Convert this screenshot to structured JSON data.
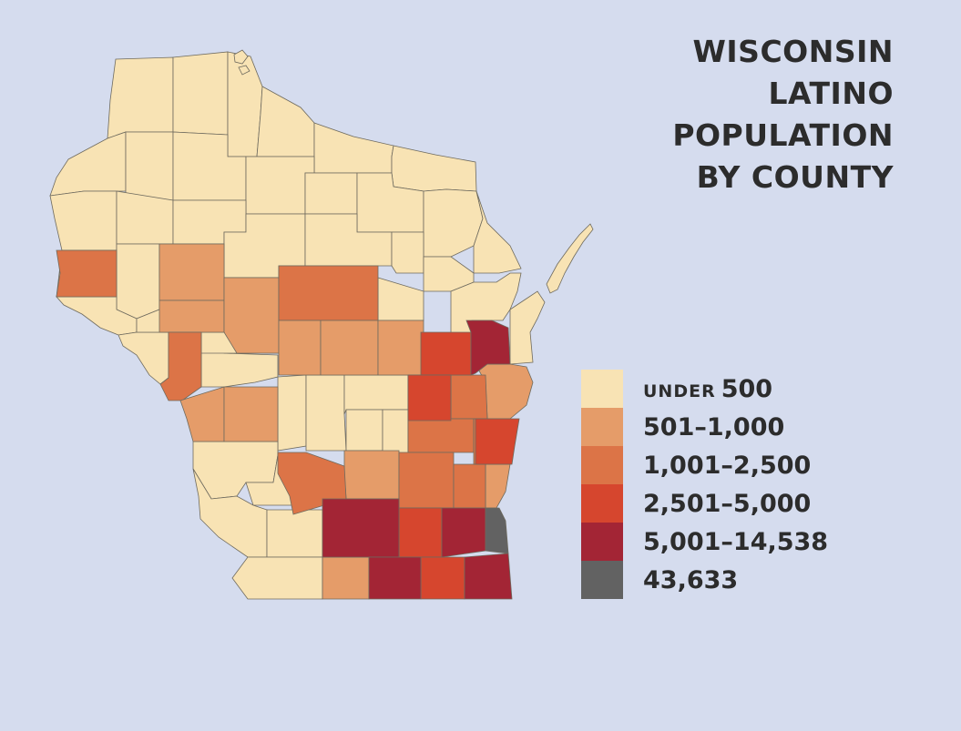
{
  "title": {
    "lines": [
      "WISCONSIN",
      "LATINO",
      "POPULATION",
      "BY COUNTY"
    ]
  },
  "legend": {
    "classes": [
      {
        "prefix": "UNDER",
        "label": "500",
        "color": "#f8e3b4"
      },
      {
        "prefix": "",
        "label": "501–1,000",
        "color": "#e59c69"
      },
      {
        "prefix": "",
        "label": "1,001–2,500",
        "color": "#dc7447"
      },
      {
        "prefix": "",
        "label": "2,501–5,000",
        "color": "#d6462e"
      },
      {
        "prefix": "",
        "label": "5,001–14,538",
        "color": "#a32535"
      },
      {
        "prefix": "",
        "label": "43,633",
        "color": "#626262"
      }
    ]
  },
  "map": {
    "background": "#d5dcee",
    "region": "Wisconsin",
    "counties": [
      {
        "class": 0
      },
      {
        "class": 0
      },
      {
        "class": 0
      },
      {
        "class": 0
      },
      {
        "class": 0
      },
      {
        "class": 0
      },
      {
        "class": 0
      },
      {
        "class": 0
      },
      {
        "class": 0
      },
      {
        "class": 0
      },
      {
        "class": 0
      },
      {
        "class": 0
      },
      {
        "class": 0
      },
      {
        "class": 0
      },
      {
        "class": 0
      },
      {
        "class": 0
      },
      {
        "class": 0
      },
      {
        "class": 0
      },
      {
        "class": 0
      },
      {
        "class": 0
      },
      {
        "class": 0
      },
      {
        "class": 0
      },
      {
        "class": 0
      },
      {
        "class": 0
      },
      {
        "class": 0
      },
      {
        "class": 0
      },
      {
        "class": 0
      },
      {
        "class": 0
      },
      {
        "class": 0
      },
      {
        "class": 0
      },
      {
        "class": 0
      },
      {
        "class": 0
      },
      {
        "class": 0
      },
      {
        "class": 0
      },
      {
        "class": 0
      },
      {
        "class": 0
      },
      {
        "class": 0
      },
      {
        "class": 0
      },
      {
        "class": 0
      },
      {
        "class": 0
      },
      {
        "class": 0
      },
      {
        "class": 0
      },
      {
        "class": 2
      },
      {
        "class": 1
      },
      {
        "class": 1
      },
      {
        "class": 1
      },
      {
        "class": 2
      },
      {
        "class": 1
      },
      {
        "class": 1
      },
      {
        "class": 1
      },
      {
        "class": 2
      },
      {
        "class": 1
      },
      {
        "class": 1
      },
      {
        "class": 1
      },
      {
        "class": 1
      },
      {
        "class": 2
      },
      {
        "class": 1
      },
      {
        "class": 2
      },
      {
        "class": 2
      },
      {
        "class": 2
      },
      {
        "class": 2
      },
      {
        "class": 2
      },
      {
        "class": 2
      },
      {
        "class": 1
      },
      {
        "class": 3
      },
      {
        "class": 3
      },
      {
        "class": 3
      },
      {
        "class": 3
      },
      {
        "class": 3
      },
      {
        "class": 4
      },
      {
        "class": 4
      },
      {
        "class": 4
      },
      {
        "class": 4
      },
      {
        "class": 4
      },
      {
        "class": 5
      }
    ]
  }
}
